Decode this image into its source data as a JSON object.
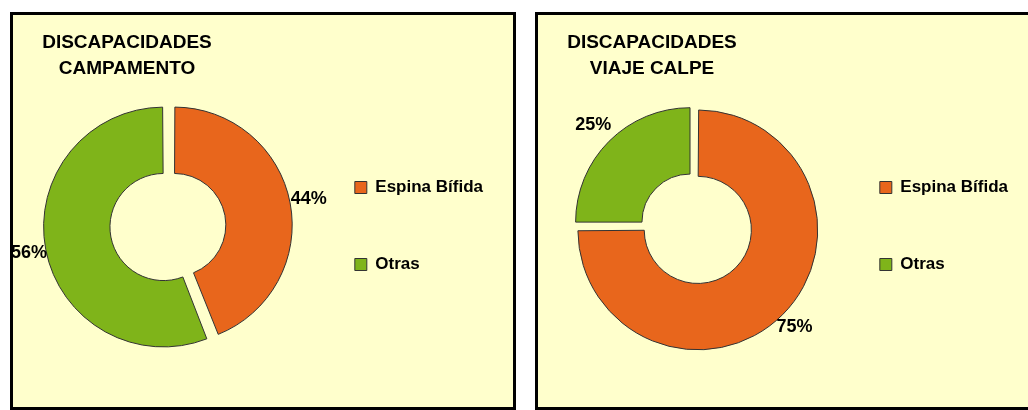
{
  "chart_data": [
    {
      "type": "donut",
      "title": "DISCAPACIDADES CAMPAMENTO",
      "categories": [
        "Espina Bífida",
        "Otras"
      ],
      "values": [
        44,
        56
      ],
      "colors": [
        "#e8661c",
        "#7fb41a"
      ],
      "value_labels": [
        "44%",
        "56%"
      ],
      "legend": "right"
    },
    {
      "type": "donut",
      "title": "DISCAPACIDADES VIAJE CALPE",
      "categories": [
        "Espina Bífida",
        "Otras"
      ],
      "values": [
        75,
        25
      ],
      "colors": [
        "#e8661c",
        "#7fb41a"
      ],
      "value_labels": [
        "75%",
        "25%"
      ],
      "legend": "right"
    }
  ]
}
